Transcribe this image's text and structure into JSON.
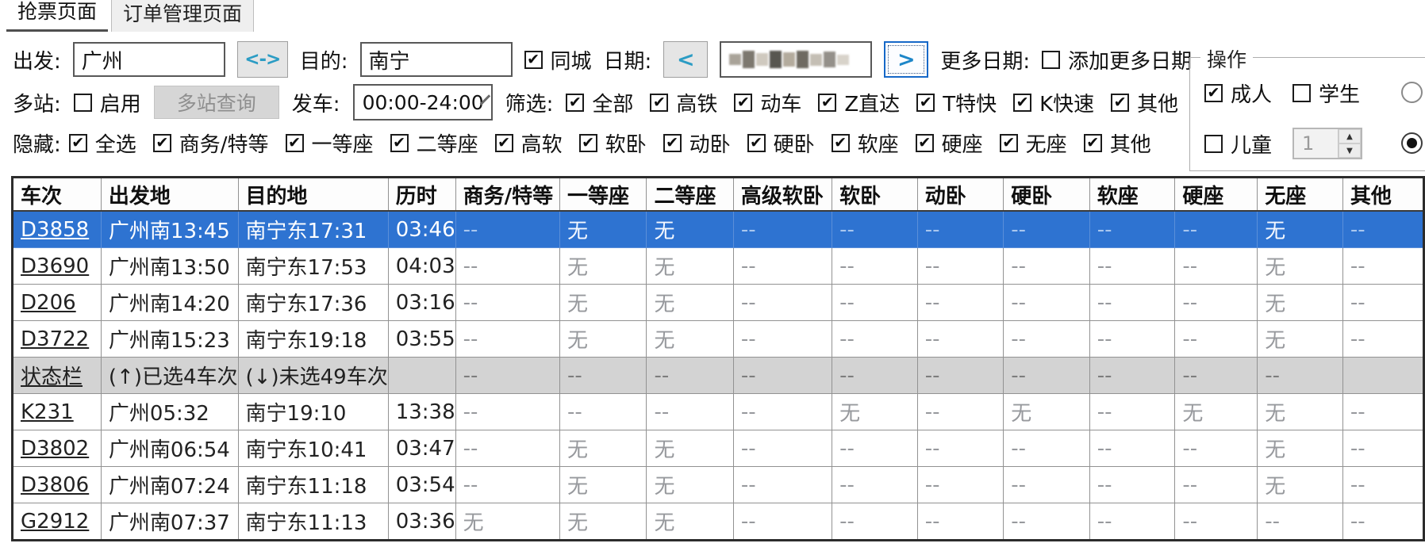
{
  "tabs": [
    {
      "label": "抢票页面",
      "active": true
    },
    {
      "label": "订单管理页面",
      "active": false
    }
  ],
  "toolbar": {
    "row1": {
      "depart_label": "出发:",
      "depart_value": "广州",
      "swap_glyph": "<->",
      "dest_label": "目的:",
      "dest_value": "南宁",
      "same_city": {
        "label": "同城",
        "checked": true
      },
      "date_label": "日期:",
      "prev_glyph": "<",
      "next_glyph": ">",
      "date_value_masked": true,
      "more_dates_label": "更多日期:",
      "add_more_dates": {
        "label": "添加更多日期",
        "checked": false
      }
    },
    "row2": {
      "multi_label": "多站:",
      "enable": {
        "label": "启用",
        "checked": false
      },
      "multi_query_button": "多站查询",
      "depart_time_label": "发车:",
      "depart_time_value": "00:00-24:00",
      "filter_label": "筛选:",
      "filters": [
        {
          "label": "全部",
          "checked": true
        },
        {
          "label": "高铁",
          "checked": true
        },
        {
          "label": "动车",
          "checked": true
        },
        {
          "label": "Z直达",
          "checked": true
        },
        {
          "label": "T特快",
          "checked": true
        },
        {
          "label": "K快速",
          "checked": true
        },
        {
          "label": "其他",
          "checked": true
        }
      ]
    },
    "row3": {
      "hide_label": "隐藏:",
      "hides": [
        {
          "label": "全选",
          "checked": true
        },
        {
          "label": "商务/特等",
          "checked": true
        },
        {
          "label": "一等座",
          "checked": true
        },
        {
          "label": "二等座",
          "checked": true
        },
        {
          "label": "高软",
          "checked": true
        },
        {
          "label": "软卧",
          "checked": true
        },
        {
          "label": "动卧",
          "checked": true
        },
        {
          "label": "硬卧",
          "checked": true
        },
        {
          "label": "软座",
          "checked": true
        },
        {
          "label": "硬座",
          "checked": true
        },
        {
          "label": "无座",
          "checked": true
        },
        {
          "label": "其他",
          "checked": true
        }
      ]
    },
    "operation": {
      "title": "操作",
      "adult": {
        "label": "成人",
        "checked": true
      },
      "student": {
        "label": "学生",
        "checked": false
      },
      "child": {
        "label": "儿童",
        "checked": false
      },
      "child_count": "1",
      "radio_top": {
        "checked": false
      },
      "radio_bottom": {
        "checked": true
      }
    }
  },
  "table": {
    "columns": [
      "车次",
      "出发地",
      "目的地",
      "历时",
      "商务/特等",
      "一等座",
      "二等座",
      "高级软卧",
      "软卧",
      "动卧",
      "硬卧",
      "软座",
      "硬座",
      "无座",
      "其他"
    ],
    "rows": [
      {
        "type": "train",
        "selected": true,
        "cells": [
          "D3858",
          "广州南13:45",
          "南宁东17:31",
          "03:46",
          "--",
          "无",
          "无",
          "--",
          "--",
          "--",
          "--",
          "--",
          "--",
          "无",
          "--"
        ]
      },
      {
        "type": "train",
        "cells": [
          "D3690",
          "广州南13:50",
          "南宁东17:53",
          "04:03",
          "--",
          "无",
          "无",
          "--",
          "--",
          "--",
          "--",
          "--",
          "--",
          "无",
          "--"
        ]
      },
      {
        "type": "train",
        "cells": [
          "D206",
          "广州南14:20",
          "南宁东17:36",
          "03:16",
          "--",
          "无",
          "无",
          "--",
          "--",
          "--",
          "--",
          "--",
          "--",
          "无",
          "--"
        ]
      },
      {
        "type": "train",
        "cells": [
          "D3722",
          "广州南15:23",
          "南宁东19:18",
          "03:55",
          "--",
          "无",
          "无",
          "--",
          "--",
          "--",
          "--",
          "--",
          "--",
          "无",
          "--"
        ]
      },
      {
        "type": "status",
        "cells": [
          "状态栏",
          "(↑)已选4车次",
          "(↓)未选49车次",
          "",
          "--",
          "--",
          "--",
          "--",
          "--",
          "--",
          "--",
          "--",
          "--",
          "--",
          ""
        ]
      },
      {
        "type": "train",
        "cells": [
          "K231",
          "广州05:32",
          "南宁19:10",
          "13:38",
          "--",
          "--",
          "--",
          "--",
          "无",
          "--",
          "无",
          "--",
          "无",
          "无",
          "--"
        ]
      },
      {
        "type": "train",
        "cells": [
          "D3802",
          "广州南06:54",
          "南宁东10:41",
          "03:47",
          "--",
          "无",
          "无",
          "--",
          "--",
          "--",
          "--",
          "--",
          "--",
          "无",
          "--"
        ]
      },
      {
        "type": "train",
        "cells": [
          "D3806",
          "广州南07:24",
          "南宁东11:18",
          "03:54",
          "--",
          "无",
          "无",
          "--",
          "--",
          "--",
          "--",
          "--",
          "--",
          "无",
          "--"
        ]
      },
      {
        "type": "train",
        "cells": [
          "G2912",
          "广州南07:37",
          "南宁东11:13",
          "03:36",
          "无",
          "无",
          "无",
          "--",
          "--",
          "--",
          "--",
          "--",
          "--",
          "--",
          "--"
        ]
      }
    ]
  },
  "colors": {
    "selected_row": "#2e73d1",
    "status_row": "#d3d3d3",
    "accent_teal": "#2b9cc4",
    "focus_blue": "#1668c8",
    "dim_text": "#97999d"
  }
}
